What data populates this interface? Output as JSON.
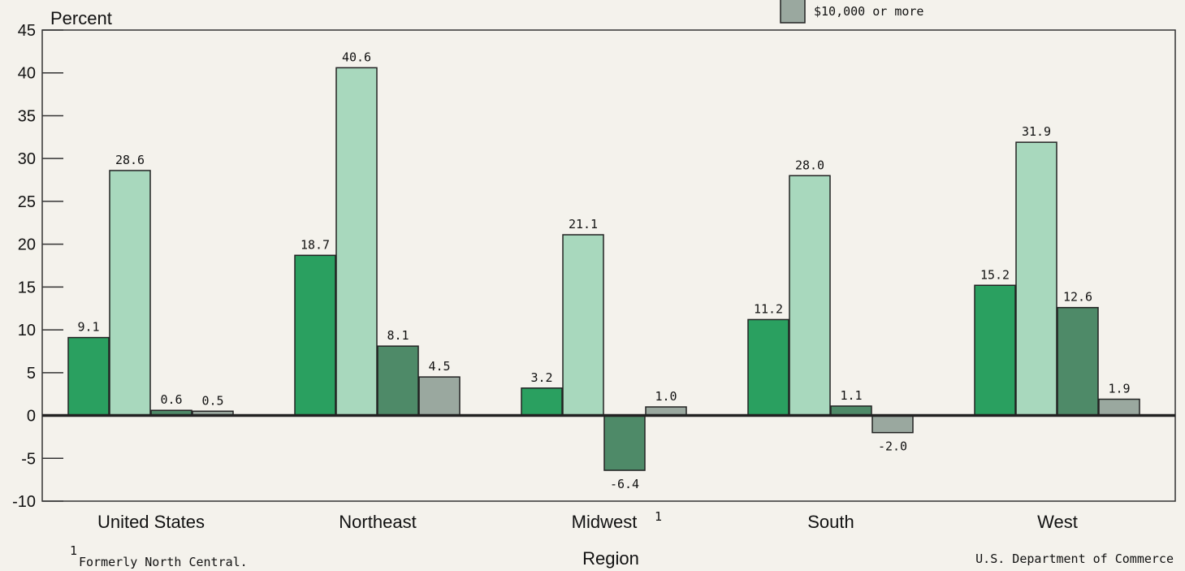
{
  "chart_data": {
    "type": "bar",
    "ylabel": "Percent",
    "xlabel": "Region",
    "ylim": [
      -10,
      45
    ],
    "yticks": [
      -10,
      -5,
      0,
      5,
      10,
      15,
      20,
      25,
      30,
      35,
      40,
      45
    ],
    "categories": [
      "United States",
      "Northeast",
      "Midwest",
      "South",
      "West"
    ],
    "category_superscripts": [
      "",
      "",
      "1",
      "",
      ""
    ],
    "series": [
      {
        "name": "",
        "color": "#2aa060",
        "values": [
          9.1,
          18.7,
          3.2,
          11.2,
          15.2
        ]
      },
      {
        "name": "",
        "color": "#a8d8bd",
        "values": [
          28.6,
          40.6,
          21.1,
          28.0,
          31.9
        ]
      },
      {
        "name": "",
        "color": "#4e8a68",
        "values": [
          0.6,
          8.1,
          -6.4,
          1.1,
          12.6
        ]
      },
      {
        "name": "$10,000 or more",
        "color": "#9aa89f",
        "values": [
          0.5,
          4.5,
          1.0,
          -2.0,
          1.9
        ]
      }
    ],
    "data_labels": [
      [
        "9.1",
        "28.6",
        "0.6",
        "0.5"
      ],
      [
        "18.7",
        "40.6",
        "8.1",
        "4.5"
      ],
      [
        "3.2",
        "21.1",
        "-6.4",
        "1.0"
      ],
      [
        "11.2",
        "28.0",
        "1.1",
        "-2.0"
      ],
      [
        "15.2",
        "31.9",
        "12.6",
        "1.9"
      ]
    ],
    "legend": {
      "placement": "top-right",
      "visible_entry": "$10,000 or more"
    },
    "footnote": {
      "marker": "1",
      "text": "Formerly North Central."
    },
    "source": "U.S. Department of Commerce"
  }
}
